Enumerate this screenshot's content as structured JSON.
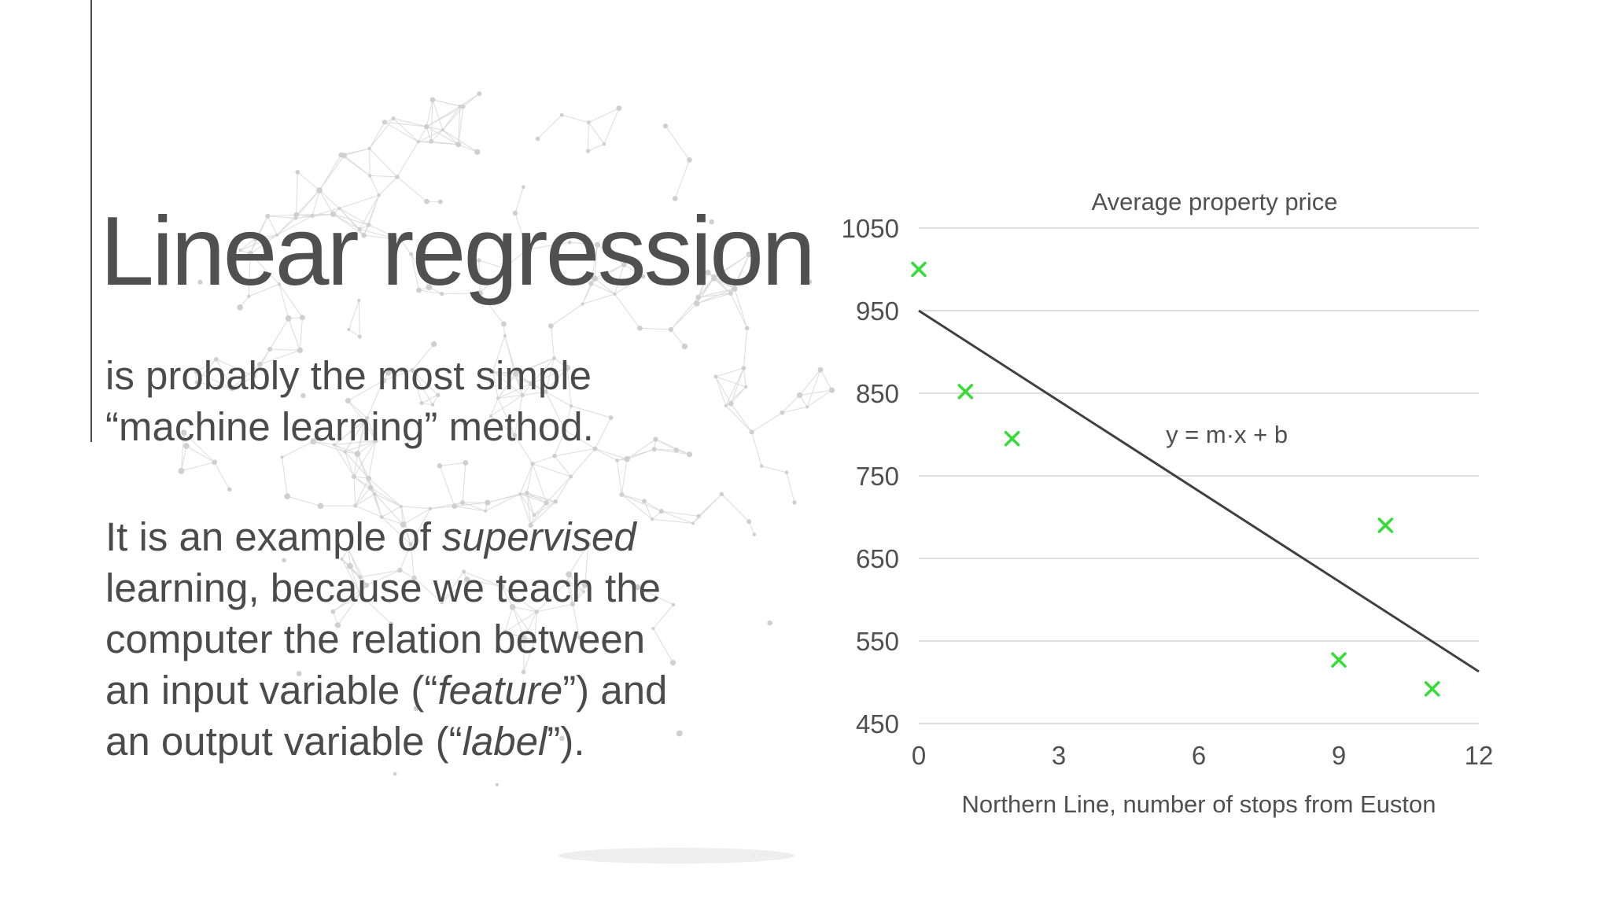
{
  "slide": {
    "title": "Linear regression",
    "intro_lines": [
      "is probably the most simple",
      "“machine learning” method."
    ],
    "body": {
      "l1_a": "It is an example of ",
      "l1_b": "supervised",
      "l2": "learning, because we teach the",
      "l3": "computer the relation between",
      "l4_a": "an input variable (“",
      "l4_b": "feature",
      "l4_c": "”) and",
      "l5_a": "an output variable (“",
      "l5_b": "label",
      "l5_c": "”)."
    }
  },
  "chart_data": {
    "type": "scatter",
    "title": "Average property price",
    "xlabel": "Northern Line, number of stops from Euston",
    "ylabel": "",
    "xlim": [
      0,
      12
    ],
    "ylim": [
      450,
      1050
    ],
    "x_ticks": [
      0,
      3,
      6,
      9,
      12
    ],
    "y_ticks": [
      450,
      550,
      650,
      750,
      850,
      950,
      1050
    ],
    "grid": "horizontal",
    "marker": "x",
    "series": [
      {
        "points": [
          [
            0,
            1000
          ],
          [
            1,
            852
          ],
          [
            2,
            795
          ],
          [
            9,
            527
          ],
          [
            10,
            690
          ],
          [
            11,
            492
          ]
        ]
      }
    ],
    "fit_line": {
      "x": [
        0,
        12
      ],
      "y": [
        950,
        513
      ]
    },
    "annotation": {
      "text": "y = m·x + b",
      "x": 6.6,
      "y": 790
    },
    "colors": {
      "points": "#33dd33",
      "line": "#404040",
      "grid": "#d4d4d4",
      "text": "#505050"
    }
  }
}
